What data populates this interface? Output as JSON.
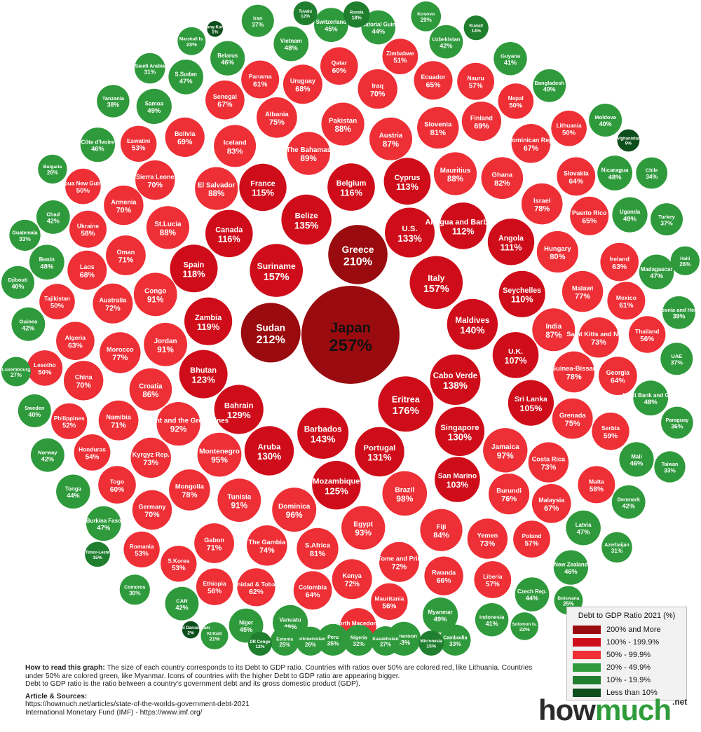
{
  "colors": {
    "tier_200_plus": "#9a0b0f",
    "tier_100_199": "#cf0d1a",
    "tier_50_99": "#ee2f36",
    "tier_20_49": "#2f9a3c",
    "tier_10_19": "#1f7f2f",
    "tier_lt10": "#0d4f1c"
  },
  "countries": [
    {
      "name": "Japan",
      "pct": "257%",
      "value": 257
    },
    {
      "name": "Sudan",
      "pct": "212%",
      "value": 212
    },
    {
      "name": "Greece",
      "pct": "210%",
      "value": 210
    },
    {
      "name": "Eritrea",
      "pct": "176%",
      "value": 176
    },
    {
      "name": "Suriname",
      "pct": "157%",
      "value": 157
    },
    {
      "name": "Italy",
      "pct": "157%",
      "value": 157
    },
    {
      "name": "Barbados",
      "pct": "143%",
      "value": 143
    },
    {
      "name": "Maldives",
      "pct": "140%",
      "value": 140
    },
    {
      "name": "Cabo Verde",
      "pct": "138%",
      "value": 138
    },
    {
      "name": "Belize",
      "pct": "135%",
      "value": 135
    },
    {
      "name": "U.S.",
      "pct": "133%",
      "value": 133
    },
    {
      "name": "Portugal",
      "pct": "131%",
      "value": 131
    },
    {
      "name": "Singapore",
      "pct": "130%",
      "value": 130
    },
    {
      "name": "Aruba",
      "pct": "130%",
      "value": 130
    },
    {
      "name": "Bahrain",
      "pct": "129%",
      "value": 129
    },
    {
      "name": "Mozambique",
      "pct": "125%",
      "value": 125
    },
    {
      "name": "Bhutan",
      "pct": "123%",
      "value": 123
    },
    {
      "name": "Zambia",
      "pct": "119%",
      "value": 119
    },
    {
      "name": "Spain",
      "pct": "118%",
      "value": 118
    },
    {
      "name": "Canada",
      "pct": "116%",
      "value": 116
    },
    {
      "name": "Belgium",
      "pct": "116%",
      "value": 116
    },
    {
      "name": "France",
      "pct": "115%",
      "value": 115
    },
    {
      "name": "Cyprus",
      "pct": "113%",
      "value": 113
    },
    {
      "name": "Antigua and Barbuda",
      "pct": "112%",
      "value": 112
    },
    {
      "name": "Angola",
      "pct": "111%",
      "value": 111
    },
    {
      "name": "Seychelles",
      "pct": "110%",
      "value": 110
    },
    {
      "name": "U.K.",
      "pct": "107%",
      "value": 107
    },
    {
      "name": "Sri Lanka",
      "pct": "105%",
      "value": 105
    },
    {
      "name": "San Marino",
      "pct": "103%",
      "value": 103
    },
    {
      "name": "Brazil",
      "pct": "98%",
      "value": 98
    },
    {
      "name": "Jamaica",
      "pct": "97%",
      "value": 97
    },
    {
      "name": "Dominica",
      "pct": "96%",
      "value": 96
    },
    {
      "name": "Montenegro",
      "pct": "95%",
      "value": 95
    },
    {
      "name": "Egypt",
      "pct": "93%",
      "value": 93
    },
    {
      "name": "St.Vincent and the Grenadines",
      "pct": "92%",
      "value": 92
    },
    {
      "name": "Jordan",
      "pct": "91%",
      "value": 91
    },
    {
      "name": "Tunisia",
      "pct": "91%",
      "value": 91
    },
    {
      "name": "Congo",
      "pct": "91%",
      "value": 91
    },
    {
      "name": "The Bahamas",
      "pct": "89%",
      "value": 89
    },
    {
      "name": "St.Lucia",
      "pct": "88%",
      "value": 88
    },
    {
      "name": "El Salvador",
      "pct": "88%",
      "value": 88
    },
    {
      "name": "Mauritius",
      "pct": "88%",
      "value": 88
    },
    {
      "name": "Pakistan",
      "pct": "88%",
      "value": 88
    },
    {
      "name": "Austria",
      "pct": "87%",
      "value": 87
    },
    {
      "name": "India",
      "pct": "87%",
      "value": 87
    },
    {
      "name": "Croatia",
      "pct": "86%",
      "value": 86
    },
    {
      "name": "Fiji",
      "pct": "84%",
      "value": 84
    },
    {
      "name": "Iceland",
      "pct": "83%",
      "value": 83
    },
    {
      "name": "Ghana",
      "pct": "82%",
      "value": 82
    },
    {
      "name": "S.Africa",
      "pct": "81%",
      "value": 81
    },
    {
      "name": "Slovenia",
      "pct": "81%",
      "value": 81
    },
    {
      "name": "Hungary",
      "pct": "80%",
      "value": 80
    },
    {
      "name": "Mongolia",
      "pct": "78%",
      "value": 78
    },
    {
      "name": "Israel",
      "pct": "78%",
      "value": 78
    },
    {
      "name": "Guinea-Bissau",
      "pct": "78%",
      "value": 78
    },
    {
      "name": "Morocco",
      "pct": "77%",
      "value": 77
    },
    {
      "name": "Malawi",
      "pct": "77%",
      "value": 77
    },
    {
      "name": "Burundi",
      "pct": "76%",
      "value": 76
    },
    {
      "name": "Albania",
      "pct": "75%",
      "value": 75
    },
    {
      "name": "Grenada",
      "pct": "75%",
      "value": 75
    },
    {
      "name": "The Gambia",
      "pct": "74%",
      "value": 74
    },
    {
      "name": "Saint Kitts and Nevis",
      "pct": "73%",
      "value": 73
    },
    {
      "name": "Costa Rica",
      "pct": "73%",
      "value": 73
    },
    {
      "name": "Kyrgyz Rep.",
      "pct": "73%",
      "value": 73
    },
    {
      "name": "Yemen",
      "pct": "73%",
      "value": 73
    },
    {
      "name": "Sao Tome and Principe",
      "pct": "72%",
      "value": 72
    },
    {
      "name": "Australia",
      "pct": "72%",
      "value": 72
    },
    {
      "name": "Kenya",
      "pct": "72%",
      "value": 72
    },
    {
      "name": "Namibia",
      "pct": "71%",
      "value": 71
    },
    {
      "name": "Oman",
      "pct": "71%",
      "value": 71
    },
    {
      "name": "Gabon",
      "pct": "71%",
      "value": 71
    },
    {
      "name": "Sierra Leone",
      "pct": "70%",
      "value": 70
    },
    {
      "name": "Germany",
      "pct": "70%",
      "value": 70
    },
    {
      "name": "Armenia",
      "pct": "70%",
      "value": 70
    },
    {
      "name": "Iraq",
      "pct": "70%",
      "value": 70
    },
    {
      "name": "China",
      "pct": "70%",
      "value": 70
    },
    {
      "name": "Bolivia",
      "pct": "69%",
      "value": 69
    },
    {
      "name": "Finland",
      "pct": "69%",
      "value": 69
    },
    {
      "name": "Laos",
      "pct": "68%",
      "value": 68
    },
    {
      "name": "Uruguay",
      "pct": "68%",
      "value": 68
    },
    {
      "name": "Malaysia",
      "pct": "67%",
      "value": 67
    },
    {
      "name": "Senegal",
      "pct": "67%",
      "value": 67
    },
    {
      "name": "Dominican Rep.",
      "pct": "67%",
      "value": 67
    },
    {
      "name": "Rwanda",
      "pct": "66%",
      "value": 66
    },
    {
      "name": "Ecuador",
      "pct": "65%",
      "value": 65
    },
    {
      "name": "Puerto Rico",
      "pct": "65%",
      "value": 65
    },
    {
      "name": "Colombia",
      "pct": "64%",
      "value": 64
    },
    {
      "name": "Slovakia",
      "pct": "64%",
      "value": 64
    },
    {
      "name": "Georgia",
      "pct": "64%",
      "value": 64
    },
    {
      "name": "Algeria",
      "pct": "63%",
      "value": 63
    },
    {
      "name": "Ireland",
      "pct": "63%",
      "value": 63
    },
    {
      "name": "Trinidad & Tobago",
      "pct": "62%",
      "value": 62
    },
    {
      "name": "Panama",
      "pct": "61%",
      "value": 61
    },
    {
      "name": "Mexico",
      "pct": "61%",
      "value": 61
    },
    {
      "name": "Togo",
      "pct": "60%",
      "value": 60
    },
    {
      "name": "Qatar",
      "pct": "60%",
      "value": 60
    },
    {
      "name": "Serbia",
      "pct": "59%",
      "value": 59
    },
    {
      "name": "Ukraine",
      "pct": "58%",
      "value": 58
    },
    {
      "name": "Malta",
      "pct": "58%",
      "value": 58
    },
    {
      "name": "Poland",
      "pct": "57%",
      "value": 57
    },
    {
      "name": "Nauru",
      "pct": "57%",
      "value": 57
    },
    {
      "name": "Liberia",
      "pct": "57%",
      "value": 57
    },
    {
      "name": "Mauritania",
      "pct": "56%",
      "value": 56
    },
    {
      "name": "Thailand",
      "pct": "56%",
      "value": 56
    },
    {
      "name": "Ethiopia",
      "pct": "56%",
      "value": 56
    },
    {
      "name": "Honduras",
      "pct": "54%",
      "value": 54
    },
    {
      "name": "North Macedonia",
      "pct": "54%",
      "value": 54
    },
    {
      "name": "S.Korea",
      "pct": "53%",
      "value": 53
    },
    {
      "name": "Eswatini",
      "pct": "53%",
      "value": 53
    },
    {
      "name": "Romania",
      "pct": "53%",
      "value": 53
    },
    {
      "name": "Philippines",
      "pct": "52%",
      "value": 52
    },
    {
      "name": "Zimbabwe",
      "pct": "51%",
      "value": 51
    },
    {
      "name": "Lesotho",
      "pct": "50%",
      "value": 50
    },
    {
      "name": "Tajikistan",
      "pct": "50%",
      "value": 50
    },
    {
      "name": "Nepal",
      "pct": "50%",
      "value": 50
    },
    {
      "name": "Papua New Guinea",
      "pct": "50%",
      "value": 50
    },
    {
      "name": "Lithuania",
      "pct": "50%",
      "value": 50
    },
    {
      "name": "Myanmar",
      "pct": "49%",
      "value": 49
    },
    {
      "name": "Samoa",
      "pct": "49%",
      "value": 49
    },
    {
      "name": "Uganda",
      "pct": "49%",
      "value": 49
    },
    {
      "name": "Vanuatu",
      "pct": "49%",
      "value": 49
    },
    {
      "name": "Vietnam",
      "pct": "48%",
      "value": 48
    },
    {
      "name": "West Bank and Gaza",
      "pct": "48%",
      "value": 48
    },
    {
      "name": "Benin",
      "pct": "48%",
      "value": 48
    },
    {
      "name": "Nicaragua",
      "pct": "48%",
      "value": 48
    },
    {
      "name": "Latvia",
      "pct": "47%",
      "value": 47
    },
    {
      "name": "S.Sudan",
      "pct": "47%",
      "value": 47
    },
    {
      "name": "Madagascar",
      "pct": "47%",
      "value": 47
    },
    {
      "name": "Burkina Faso",
      "pct": "47%",
      "value": 47
    },
    {
      "name": "Belarus",
      "pct": "46%",
      "value": 46
    },
    {
      "name": "Mali",
      "pct": "46%",
      "value": 46
    },
    {
      "name": "Côte d'Ivoire",
      "pct": "46%",
      "value": 46
    },
    {
      "name": "New Zealand",
      "pct": "46%",
      "value": 46
    },
    {
      "name": "Niger",
      "pct": "45%",
      "value": 45
    },
    {
      "name": "Switzerland",
      "pct": "45%",
      "value": 45
    },
    {
      "name": "Czech Rep.",
      "pct": "44%",
      "value": 44
    },
    {
      "name": "Tonga",
      "pct": "44%",
      "value": 44
    },
    {
      "name": "Equatorial Guinea",
      "pct": "44%",
      "value": 44
    },
    {
      "name": "Cameroon",
      "pct": "43%",
      "value": 43
    },
    {
      "name": "Guinea",
      "pct": "42%",
      "value": 42
    },
    {
      "name": "Uzbekistan",
      "pct": "42%",
      "value": 42
    },
    {
      "name": "CAR",
      "pct": "42%",
      "value": 42
    },
    {
      "name": "Chad",
      "pct": "42%",
      "value": 42
    },
    {
      "name": "Denmark",
      "pct": "42%",
      "value": 42
    },
    {
      "name": "Norway",
      "pct": "42%",
      "value": 42
    },
    {
      "name": "Guyana",
      "pct": "41%",
      "value": 41
    },
    {
      "name": "Indonesia",
      "pct": "41%",
      "value": 41
    },
    {
      "name": "Sweden",
      "pct": "40%",
      "value": 40
    },
    {
      "name": "Bangladesh",
      "pct": "40%",
      "value": 40
    },
    {
      "name": "Djibouti",
      "pct": "40%",
      "value": 40
    },
    {
      "name": "Moldova",
      "pct": "40%",
      "value": 40
    },
    {
      "name": "Bosnia and Herz.",
      "pct": "39%",
      "value": 39
    },
    {
      "name": "Tanzania",
      "pct": "38%",
      "value": 38
    },
    {
      "name": "Turkey",
      "pct": "37%",
      "value": 37
    },
    {
      "name": "UAE",
      "pct": "37%",
      "value": 37
    },
    {
      "name": "Iran",
      "pct": "37%",
      "value": 37
    },
    {
      "name": "Paraguay",
      "pct": "36%",
      "value": 36
    },
    {
      "name": "Peru",
      "pct": "35%",
      "value": 35
    },
    {
      "name": "Chile",
      "pct": "34%",
      "value": 34
    },
    {
      "name": "Cambodia",
      "pct": "33%",
      "value": 33
    },
    {
      "name": "Guatemala",
      "pct": "33%",
      "value": 33
    },
    {
      "name": "Taiwan",
      "pct": "33%",
      "value": 33
    },
    {
      "name": "Nigeria",
      "pct": "32%",
      "value": 32
    },
    {
      "name": "Saudi Arabia",
      "pct": "31%",
      "value": 31
    },
    {
      "name": "Azerbaijan",
      "pct": "31%",
      "value": 31
    },
    {
      "name": "Comoros",
      "pct": "30%",
      "value": 30
    },
    {
      "name": "Kosovo",
      "pct": "29%",
      "value": 29
    },
    {
      "name": "Kazakhstan",
      "pct": "27%",
      "value": 27
    },
    {
      "name": "Luxembourg",
      "pct": "27%",
      "value": 27
    },
    {
      "name": "Haiti",
      "pct": "26%",
      "value": 26
    },
    {
      "name": "Turkmenistan",
      "pct": "26%",
      "value": 26
    },
    {
      "name": "Bulgaria",
      "pct": "26%",
      "value": 26
    },
    {
      "name": "Botswana",
      "pct": "25%",
      "value": 25
    },
    {
      "name": "Estonia",
      "pct": "25%",
      "value": 25
    },
    {
      "name": "Marshall Is.",
      "pct": "23%",
      "value": 23
    },
    {
      "name": "Solomon Is.",
      "pct": "22%",
      "value": 22
    },
    {
      "name": "Kiribati",
      "pct": "21%",
      "value": 21
    },
    {
      "name": "Russia",
      "pct": "18%",
      "value": 18
    },
    {
      "name": "Micronesia",
      "pct": "15%",
      "value": 15
    },
    {
      "name": "Timor-Leste",
      "pct": "15%",
      "value": 15
    },
    {
      "name": "Kuwait",
      "pct": "14%",
      "value": 14
    },
    {
      "name": "DR Congo",
      "pct": "12%",
      "value": 12
    },
    {
      "name": "Tuvalu",
      "pct": "12%",
      "value": 12
    },
    {
      "name": "Afghanistan",
      "pct": "9%",
      "value": 9
    },
    {
      "name": "Brunei Darussalam",
      "pct": "2%",
      "value": 2
    },
    {
      "name": "Hong Kong",
      "pct": "1%",
      "value": 1
    }
  ],
  "legend": {
    "title": "Debt to GDP Ratio 2021 (%)",
    "items": [
      {
        "label": "200% and More",
        "color": "#9a0b0f"
      },
      {
        "label": "100% - 199.9%",
        "color": "#cf0d1a"
      },
      {
        "label": "50% - 99.9%",
        "color": "#ee2f36"
      },
      {
        "label": "20% - 49.9%",
        "color": "#2f9a3c"
      },
      {
        "label": "10% - 19.9%",
        "color": "#1f7f2f"
      },
      {
        "label": "Less than 10%",
        "color": "#0d4f1c"
      }
    ]
  },
  "footnote": {
    "howto_heading": "How to read this graph:",
    "howto_text": " The size of each country corresponds to its Debt to GDP ratio. Countries with ratios over 50% are colored red, like Lithuania. Countries under 50% are colored green, like Myanmar. Icons of countries with the higher Debt to GDP ratio are appearing bigger.",
    "definition": "Debt to GDP ratio is the ratio between a country's government debt and its gross domestic product (GDP).",
    "sources_heading": "Article & Sources:",
    "source_1": "https://howmuch.net/articles/state-of-the-worlds-government-debt-2021",
    "source_2": "International Monetary Fund (IMF) - https://www.imf.org/"
  },
  "brand": {
    "how": "how",
    "much": "much",
    "tld": ".net"
  }
}
